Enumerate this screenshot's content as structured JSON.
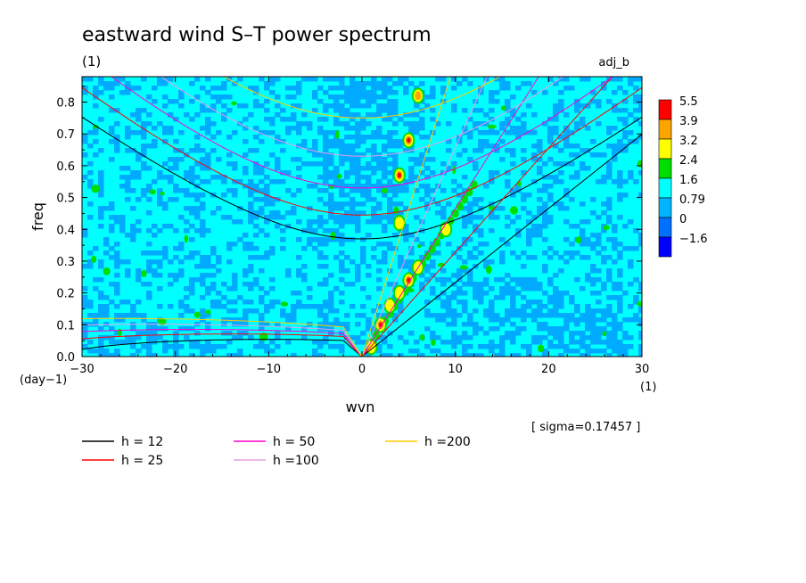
{
  "chart_data": {
    "type": "heatmap",
    "title": "eastward wind S–T power spectrum",
    "subtitle_left": "(1)",
    "subtitle_right": "adj_b",
    "xlabel": "wvn",
    "ylabel": "freq",
    "x_unit": "(1)",
    "y_unit": "(day−1)",
    "xlim": [
      -30,
      30
    ],
    "ylim": [
      0,
      0.88
    ],
    "x_ticks": [
      -30,
      -20,
      -10,
      0,
      10,
      20,
      30
    ],
    "x_tick_labels": [
      "−30",
      "−20",
      "−10",
      "0",
      "10",
      "20",
      "30"
    ],
    "y_ticks": [
      0,
      0.1,
      0.2,
      0.3,
      0.4,
      0.5,
      0.6,
      0.7,
      0.8
    ],
    "y_tick_labels": [
      "0.0",
      "0.1",
      "0.2",
      "0.3",
      "0.4",
      "0.5",
      "0.6",
      "0.7",
      "0.8"
    ],
    "sigma_text": "[ sigma=0.17457 ]",
    "colorbar": {
      "labels": [
        "5.5",
        "3.9",
        "3.2",
        "2.4",
        "1.6",
        "0.79",
        "0",
        "−1.6"
      ],
      "colors": [
        "#ff0000",
        "#ffa500",
        "#ffff00",
        "#00dd00",
        "#00ffff",
        "#00b4ff",
        "#0070ff",
        "#0000ff"
      ]
    },
    "heatmap_colors": {
      "background": "#00ffff",
      "low": "#00aaff",
      "mid": "#00dd00",
      "high": "#ffff00",
      "higher": "#ffa500",
      "peak": "#ff0000"
    },
    "series": [
      {
        "name": "h = 12",
        "color": "#000000",
        "h": 12
      },
      {
        "name": "h = 25",
        "color": "#ff0000",
        "h": 25
      },
      {
        "name": "h = 50",
        "color": "#ff00cc",
        "h": 50
      },
      {
        "name": "h =100",
        "color": "#e8a0e0",
        "h": 100
      },
      {
        "name": "h =200",
        "color": "#ffcc00",
        "h": 200
      }
    ],
    "curve_minima": {
      "poincare_n1_freq_at_k0": [
        0.37,
        0.445,
        0.53,
        0.63,
        0.75
      ],
      "mrg_peak_freq": [
        0.057,
        0.075,
        0.09,
        0.107,
        0.126
      ],
      "kelvin_slope_per_wvn": [
        0.0233,
        0.0328,
        0.0465,
        0.0657,
        0.0929
      ]
    },
    "spectral_peaks": [
      {
        "wvn": 2,
        "freq": 0.1,
        "level": "peak"
      },
      {
        "wvn": 3,
        "freq": 0.16,
        "level": "high"
      },
      {
        "wvn": 4,
        "freq": 0.2,
        "level": "high"
      },
      {
        "wvn": 5,
        "freq": 0.24,
        "level": "peak"
      },
      {
        "wvn": 6,
        "freq": 0.28,
        "level": "mid"
      },
      {
        "wvn": 9,
        "freq": 0.4,
        "level": "high"
      },
      {
        "wvn": 4,
        "freq": 0.42,
        "level": "mid"
      },
      {
        "wvn": 4,
        "freq": 0.57,
        "level": "peak"
      },
      {
        "wvn": 5,
        "freq": 0.68,
        "level": "peak"
      },
      {
        "wvn": 6,
        "freq": 0.82,
        "level": "higher"
      },
      {
        "wvn": 1,
        "freq": 0.03,
        "level": "high"
      }
    ],
    "grid": false,
    "legend_placement": "below-plot"
  }
}
